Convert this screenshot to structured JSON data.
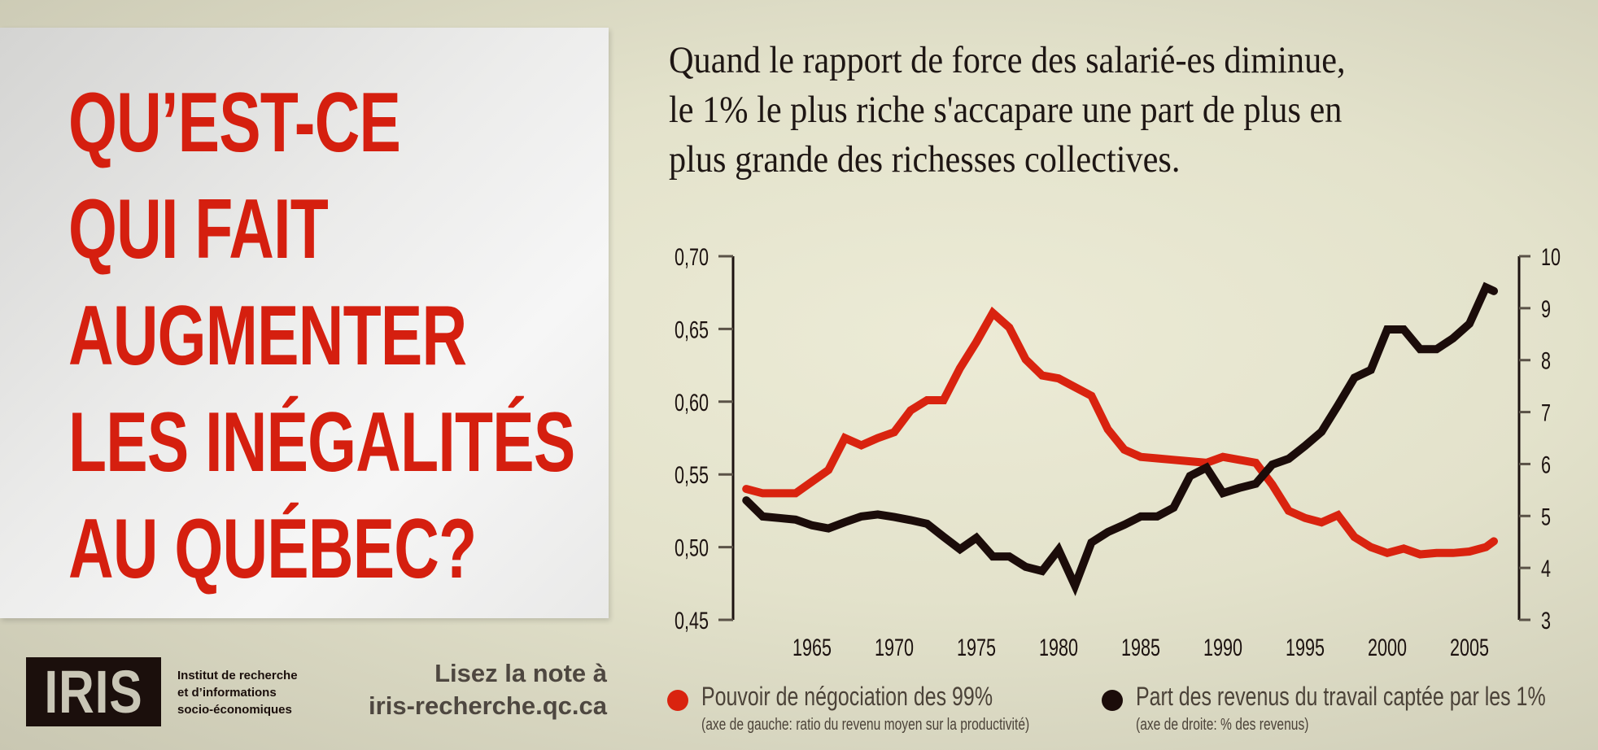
{
  "headline": {
    "lines": [
      "QU’EST-CE",
      "QUI FAIT",
      "AUGMENTER",
      "LES INÉGALITÉS",
      "AU QUÉBEC?"
    ]
  },
  "subtitle": {
    "lines": [
      "Quand le rapport de force des salarié-es diminue,",
      "le 1% le plus riche s'accapare une part de plus en",
      "plus grande des richesses collectives."
    ]
  },
  "footer": {
    "logo": "IRIS",
    "org_lines": [
      "Institut de recherche",
      "et d’informations",
      "socio-économiques"
    ],
    "cta_lines": [
      "Lisez la note à",
      "iris-recherche.qc.ca"
    ]
  },
  "legend": [
    {
      "label": "Pouvoir de négociation des 99%",
      "sublabel": "(axe de gauche: ratio du revenu moyen sur la productivité)",
      "color": "#d9230f"
    },
    {
      "label": "Part des revenus du travail captée par les 1%",
      "sublabel": "(axe de droite: % des revenus)",
      "color": "#1b0c0a"
    }
  ],
  "colors": {
    "headline_red": "#d51f0f",
    "series_red": "#d9230f",
    "series_black": "#1b0c0a",
    "axis": "#1c1210"
  },
  "chart_data": {
    "type": "line",
    "title": "",
    "xlabel": "",
    "ylabel": "Pouvoir de négociation des 99% (ratio du revenu moyen sur la productivité)",
    "y2label": "Part des revenus du travail captée par les 1% (% des revenus)",
    "x": [
      1961,
      1962,
      1963,
      1964,
      1965,
      1966,
      1967,
      1968,
      1969,
      1970,
      1971,
      1972,
      1973,
      1974,
      1975,
      1976,
      1977,
      1978,
      1979,
      1980,
      1981,
      1982,
      1983,
      1984,
      1985,
      1986,
      1987,
      1988,
      1989,
      1990,
      1991,
      1992,
      1993,
      1994,
      1995,
      1996,
      1997,
      1998,
      1999,
      2000,
      2001,
      2002,
      2003,
      2004,
      2005,
      2006,
      2007
    ],
    "xticks": [
      "1965",
      "1970",
      "1975",
      "1980",
      "1985",
      "1990",
      "1995",
      "2000",
      "2005"
    ],
    "ylim": [
      0.45,
      0.7
    ],
    "yticks": [
      "0,70",
      "0,65",
      "0,60",
      "0,55",
      "0,50",
      "0,45"
    ],
    "y2lim": [
      3,
      10
    ],
    "y2ticks": [
      "10",
      "9",
      "8",
      "7",
      "6",
      "5",
      "4",
      "3"
    ],
    "grid": false,
    "legend_position": "bottom",
    "series": [
      {
        "name": "Pouvoir de négociation des 99%",
        "axis": "left",
        "color": "#d9230f",
        "values": [
          0.54,
          0.537,
          0.537,
          0.537,
          0.545,
          0.553,
          0.575,
          0.57,
          0.575,
          0.579,
          0.594,
          0.601,
          0.601,
          0.623,
          0.641,
          0.661,
          0.651,
          0.629,
          0.618,
          0.616,
          0.61,
          0.604,
          0.581,
          0.567,
          0.562,
          0.561,
          0.56,
          0.559,
          0.558,
          0.562,
          0.56,
          0.558,
          0.543,
          0.525,
          0.52,
          0.517,
          0.522,
          0.507,
          0.5,
          0.496,
          0.499,
          0.495,
          0.496,
          0.496,
          0.497,
          0.5,
          0.504
        ]
      },
      {
        "name": "Part des revenus du travail captée par les 1%",
        "axis": "right",
        "color": "#1b0c0a",
        "values": [
          5.3,
          4.99,
          4.96,
          4.93,
          4.82,
          4.76,
          4.88,
          4.99,
          5.03,
          4.98,
          4.92,
          4.85,
          4.6,
          4.36,
          4.58,
          4.22,
          4.22,
          4.02,
          3.94,
          4.35,
          3.66,
          4.49,
          4.69,
          4.83,
          4.99,
          4.99,
          5.16,
          5.77,
          5.93,
          5.44,
          5.54,
          5.62,
          5.99,
          6.1,
          6.35,
          6.62,
          7.13,
          7.66,
          7.81,
          8.59,
          8.59,
          8.21,
          8.21,
          8.42,
          8.7,
          9.4,
          9.33
        ]
      }
    ]
  }
}
